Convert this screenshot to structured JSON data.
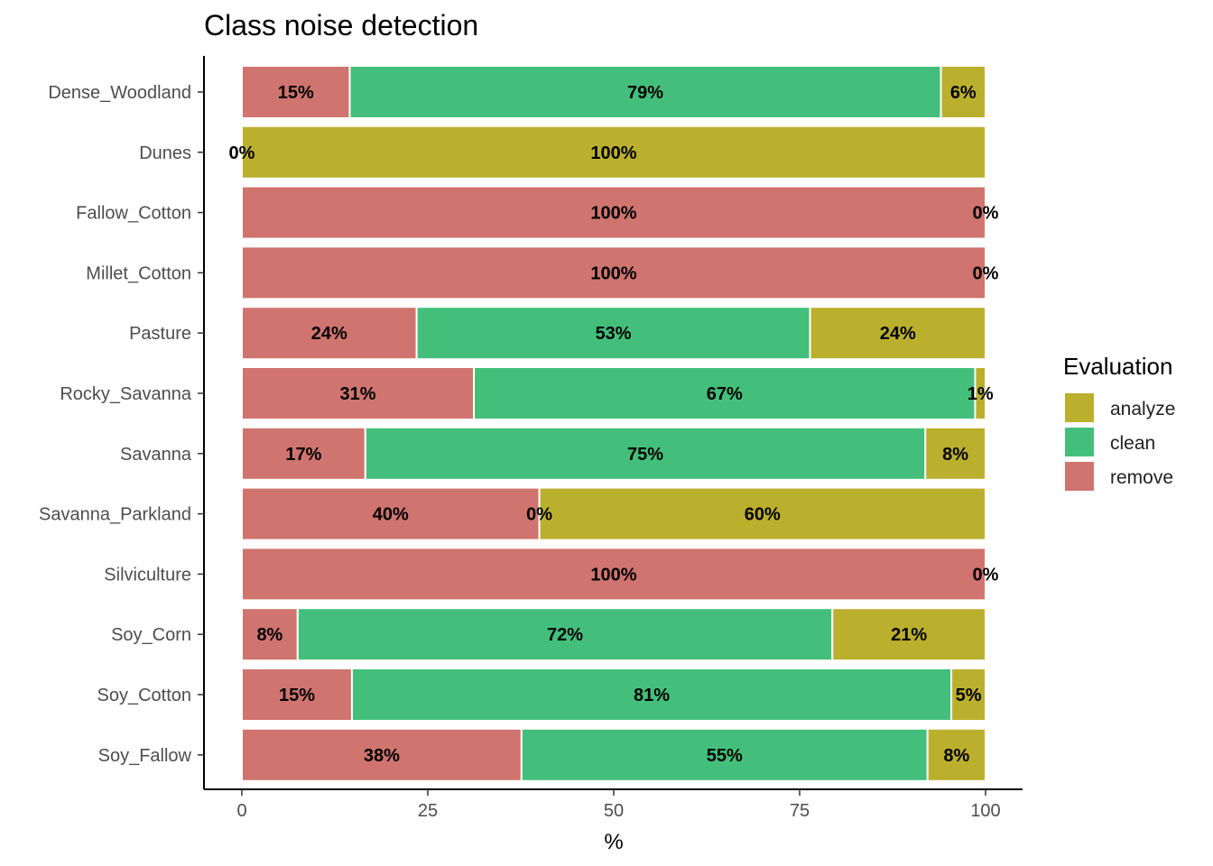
{
  "chart_data": {
    "type": "bar",
    "orientation": "horizontal",
    "stacked": true,
    "title": "Class noise detection",
    "xlabel": "%",
    "ylabel": "",
    "xlim": [
      0,
      100
    ],
    "xticks": [
      0,
      25,
      50,
      75,
      100
    ],
    "grid": false,
    "legend": {
      "title": "Evaluation",
      "position": "right",
      "entries": [
        "analyze",
        "clean",
        "remove"
      ]
    },
    "colors": {
      "remove": "#CF746E",
      "clean": "#44BF7B",
      "analyze": "#BBAF2E"
    },
    "stack_order": [
      "remove",
      "clean",
      "analyze"
    ],
    "categories": [
      "Dense_Woodland",
      "Dunes",
      "Fallow_Cotton",
      "Millet_Cotton",
      "Pasture",
      "Rocky_Savanna",
      "Savanna",
      "Savanna_Parkland",
      "Silviculture",
      "Soy_Corn",
      "Soy_Cotton",
      "Soy_Fallow"
    ],
    "series": [
      {
        "name": "remove",
        "values": [
          14.5,
          0,
          100,
          100,
          23.5,
          31.2,
          16.6,
          40,
          100,
          7.5,
          14.8,
          37.6
        ]
      },
      {
        "name": "clean",
        "values": [
          79.5,
          0,
          0,
          0,
          52.9,
          67.4,
          75.3,
          0,
          0,
          71.9,
          80.6,
          54.6
        ]
      },
      {
        "name": "analyze",
        "values": [
          6.0,
          100,
          0,
          0,
          23.6,
          1.4,
          8.1,
          60,
          0,
          20.6,
          4.6,
          7.8
        ]
      }
    ],
    "bar_labels": [
      [
        {
          "series": "remove",
          "text": "15%"
        },
        {
          "series": "clean",
          "text": "79%"
        },
        {
          "series": "analyze",
          "text": "6%"
        }
      ],
      [
        {
          "series": "remove",
          "text": "0%"
        },
        {
          "series": "analyze",
          "text": "100%"
        }
      ],
      [
        {
          "series": "remove",
          "text": "100%"
        },
        {
          "series": "analyze",
          "text": "0%"
        }
      ],
      [
        {
          "series": "remove",
          "text": "100%"
        },
        {
          "series": "analyze",
          "text": "0%"
        }
      ],
      [
        {
          "series": "remove",
          "text": "24%"
        },
        {
          "series": "clean",
          "text": "53%"
        },
        {
          "series": "analyze",
          "text": "24%"
        }
      ],
      [
        {
          "series": "remove",
          "text": "31%"
        },
        {
          "series": "clean",
          "text": "67%"
        },
        {
          "series": "analyze",
          "text": "1%"
        }
      ],
      [
        {
          "series": "remove",
          "text": "17%"
        },
        {
          "series": "clean",
          "text": "75%"
        },
        {
          "series": "analyze",
          "text": "8%"
        }
      ],
      [
        {
          "series": "remove",
          "text": "40%"
        },
        {
          "series": "clean",
          "text": "0%"
        },
        {
          "series": "analyze",
          "text": "60%"
        }
      ],
      [
        {
          "series": "remove",
          "text": "100%"
        },
        {
          "series": "analyze",
          "text": "0%"
        }
      ],
      [
        {
          "series": "remove",
          "text": "8%"
        },
        {
          "series": "clean",
          "text": "72%"
        },
        {
          "series": "analyze",
          "text": "21%"
        }
      ],
      [
        {
          "series": "remove",
          "text": "15%"
        },
        {
          "series": "clean",
          "text": "81%"
        },
        {
          "series": "analyze",
          "text": "5%"
        }
      ],
      [
        {
          "series": "remove",
          "text": "38%"
        },
        {
          "series": "clean",
          "text": "55%"
        },
        {
          "series": "analyze",
          "text": "8%"
        }
      ]
    ]
  }
}
